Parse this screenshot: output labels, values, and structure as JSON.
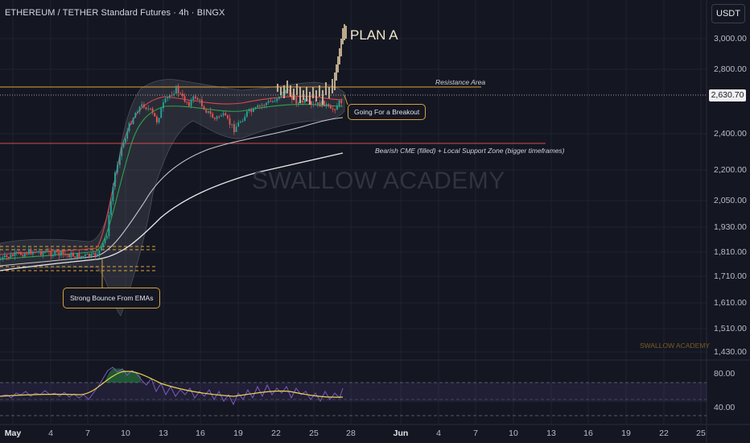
{
  "header": {
    "title": "ETHEREUM / TETHER Standard Futures · 4h · BINGX",
    "currency_button": "USDT"
  },
  "price_scale": {
    "labels": [
      "3,000.00",
      "2,800.00",
      "2,400.00",
      "2,200.00",
      "2,050.00",
      "1,930.00",
      "1,810.00",
      "1,710.00",
      "1,610.00",
      "1,510.00",
      "1,430.00"
    ],
    "current_price": "2,630.70"
  },
  "rsi_scale": {
    "labels": [
      "80.00",
      "40.00"
    ]
  },
  "time_axis": {
    "labels": [
      "May",
      "4",
      "7",
      "10",
      "13",
      "16",
      "19",
      "22",
      "25",
      "28",
      "Jun",
      "4",
      "7",
      "10",
      "13",
      "16",
      "19",
      "22",
      "25"
    ]
  },
  "annotations": {
    "plan": "PLAN A",
    "resistance": "Resistance Area",
    "support": "Bearish CME (filled) + Local Support Zone (bigger timeframes)",
    "breakout": "Going For a Breakout",
    "bounce": "Strong Bounce From EMAs"
  },
  "watermark": "SWALLOW ACADEMY",
  "watermark_small": "SWALLOW ACADEMY",
  "colors": {
    "background": "#141722",
    "resistance_line": "#e3a234",
    "support_line": "#d9474f",
    "bull_candle": "#26a69a",
    "bear_candle": "#ef5350",
    "projection_candle": "#d8c3a0",
    "rsi_line": "#7e57c2",
    "rsi_ma": "#e8d44d"
  }
}
